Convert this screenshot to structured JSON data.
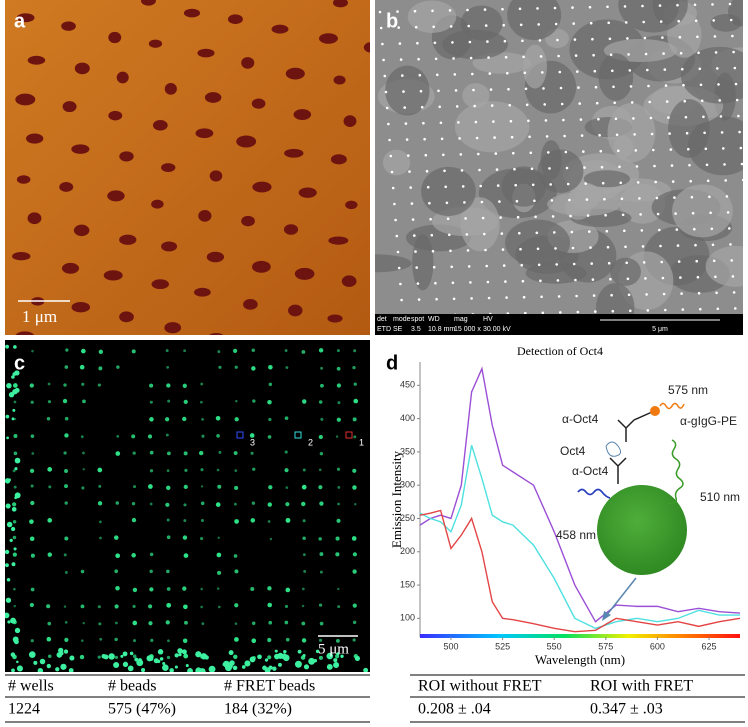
{
  "panels": {
    "a": {
      "label": "a",
      "scale_bar": "1 μm"
    },
    "b": {
      "label": "b",
      "info_headers": [
        "det",
        "mode",
        "spot",
        "WD",
        "mag",
        "HV"
      ],
      "info_values": [
        "ETD",
        "SE",
        "3.5",
        "10.8 mm",
        "15 000 x",
        "30.00 kV"
      ],
      "scale_bar": "5 μm"
    },
    "c": {
      "label": "c",
      "roi_labels": [
        "3",
        "2",
        "1"
      ],
      "scale_bar": "5 μm"
    },
    "d": {
      "label": "d"
    }
  },
  "chart_data": {
    "type": "line",
    "title": "Detection of Oct4",
    "x_label": "Wavelength (nm)",
    "y_label": "Emission Intensity",
    "x": [
      485,
      490,
      495,
      500,
      505,
      510,
      515,
      520,
      525,
      530,
      540,
      550,
      560,
      570,
      580,
      590,
      600,
      610,
      620,
      630,
      640
    ],
    "series": [
      {
        "color": "#9b4fd6",
        "values": [
          240,
          250,
          255,
          250,
          300,
          440,
          475,
          390,
          330,
          320,
          300,
          230,
          150,
          95,
          120,
          118,
          118,
          110,
          115,
          110,
          108
        ]
      },
      {
        "color": "#4fe0e0",
        "values": [
          258,
          250,
          245,
          230,
          270,
          360,
          310,
          255,
          245,
          240,
          210,
          160,
          100,
          85,
          95,
          100,
          95,
          100,
          112,
          105,
          105
        ]
      },
      {
        "color": "#e34545",
        "values": [
          255,
          258,
          262,
          205,
          225,
          250,
          200,
          125,
          100,
          98,
          92,
          85,
          80,
          82,
          100,
          95,
          90,
          95,
          88,
          95,
          100
        ]
      }
    ],
    "xlim": [
      485,
      640
    ],
    "ylim": [
      72,
      485
    ],
    "xticks": [
      500,
      525,
      550,
      575,
      600,
      625
    ],
    "yticks": [
      100,
      150,
      200,
      250,
      300,
      350,
      400,
      450
    ]
  },
  "diagram": {
    "labels": [
      "575 nm",
      "α-Oct4",
      "α-gIgG-PE",
      "Oct4",
      "α-Oct4",
      "510 nm",
      "458 nm"
    ]
  },
  "table_c": {
    "headers": [
      "# wells",
      "# beads",
      "# FRET beads"
    ],
    "rows": [
      [
        "1224",
        "575 (47%)",
        "184 (32%)"
      ]
    ]
  },
  "table_d": {
    "headers": [
      "ROI without FRET",
      "ROI with FRET"
    ],
    "rows": [
      [
        "0.208 ± .04",
        "0.347 ± .03"
      ]
    ]
  }
}
